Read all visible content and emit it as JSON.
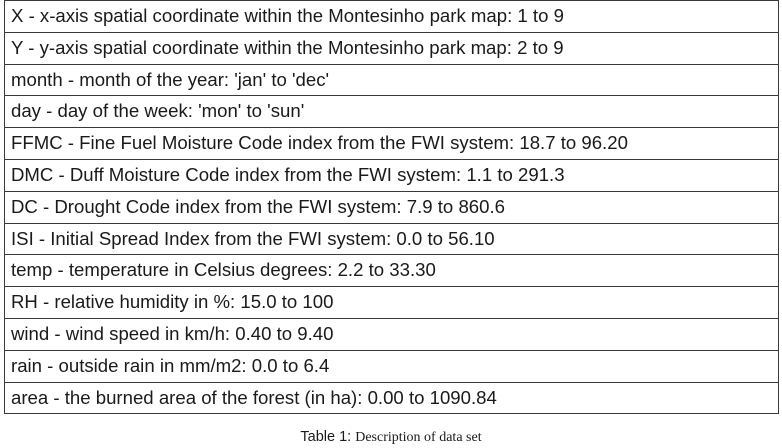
{
  "table": {
    "rows": [
      "X - x-axis spatial coordinate within the Montesinho park map: 1 to 9",
      "Y - y-axis spatial coordinate within the Montesinho park map: 2 to 9",
      "month - month of the year: 'jan' to 'dec'",
      "day - day of the week: 'mon' to 'sun'",
      "FFMC - Fine Fuel Moisture Code index from the FWI system: 18.7 to 96.20",
      "DMC - Duff Moisture Code index from the FWI system: 1.1 to 291.3",
      "DC - Drought Code index from the FWI system: 7.9 to 860.6",
      "ISI - Initial Spread Index from the FWI system: 0.0 to 56.10",
      "temp - temperature in Celsius degrees: 2.2 to 33.30",
      "RH - relative humidity in %: 15.0 to 100",
      "wind - wind speed in km/h: 0.40 to 9.40",
      "rain - outside rain in mm/m2: 0.0 to 6.4",
      "area - the burned area of the forest (in ha): 0.00 to 1090.84"
    ]
  },
  "caption": {
    "label": "Table 1: ",
    "text": "Description of data set"
  }
}
